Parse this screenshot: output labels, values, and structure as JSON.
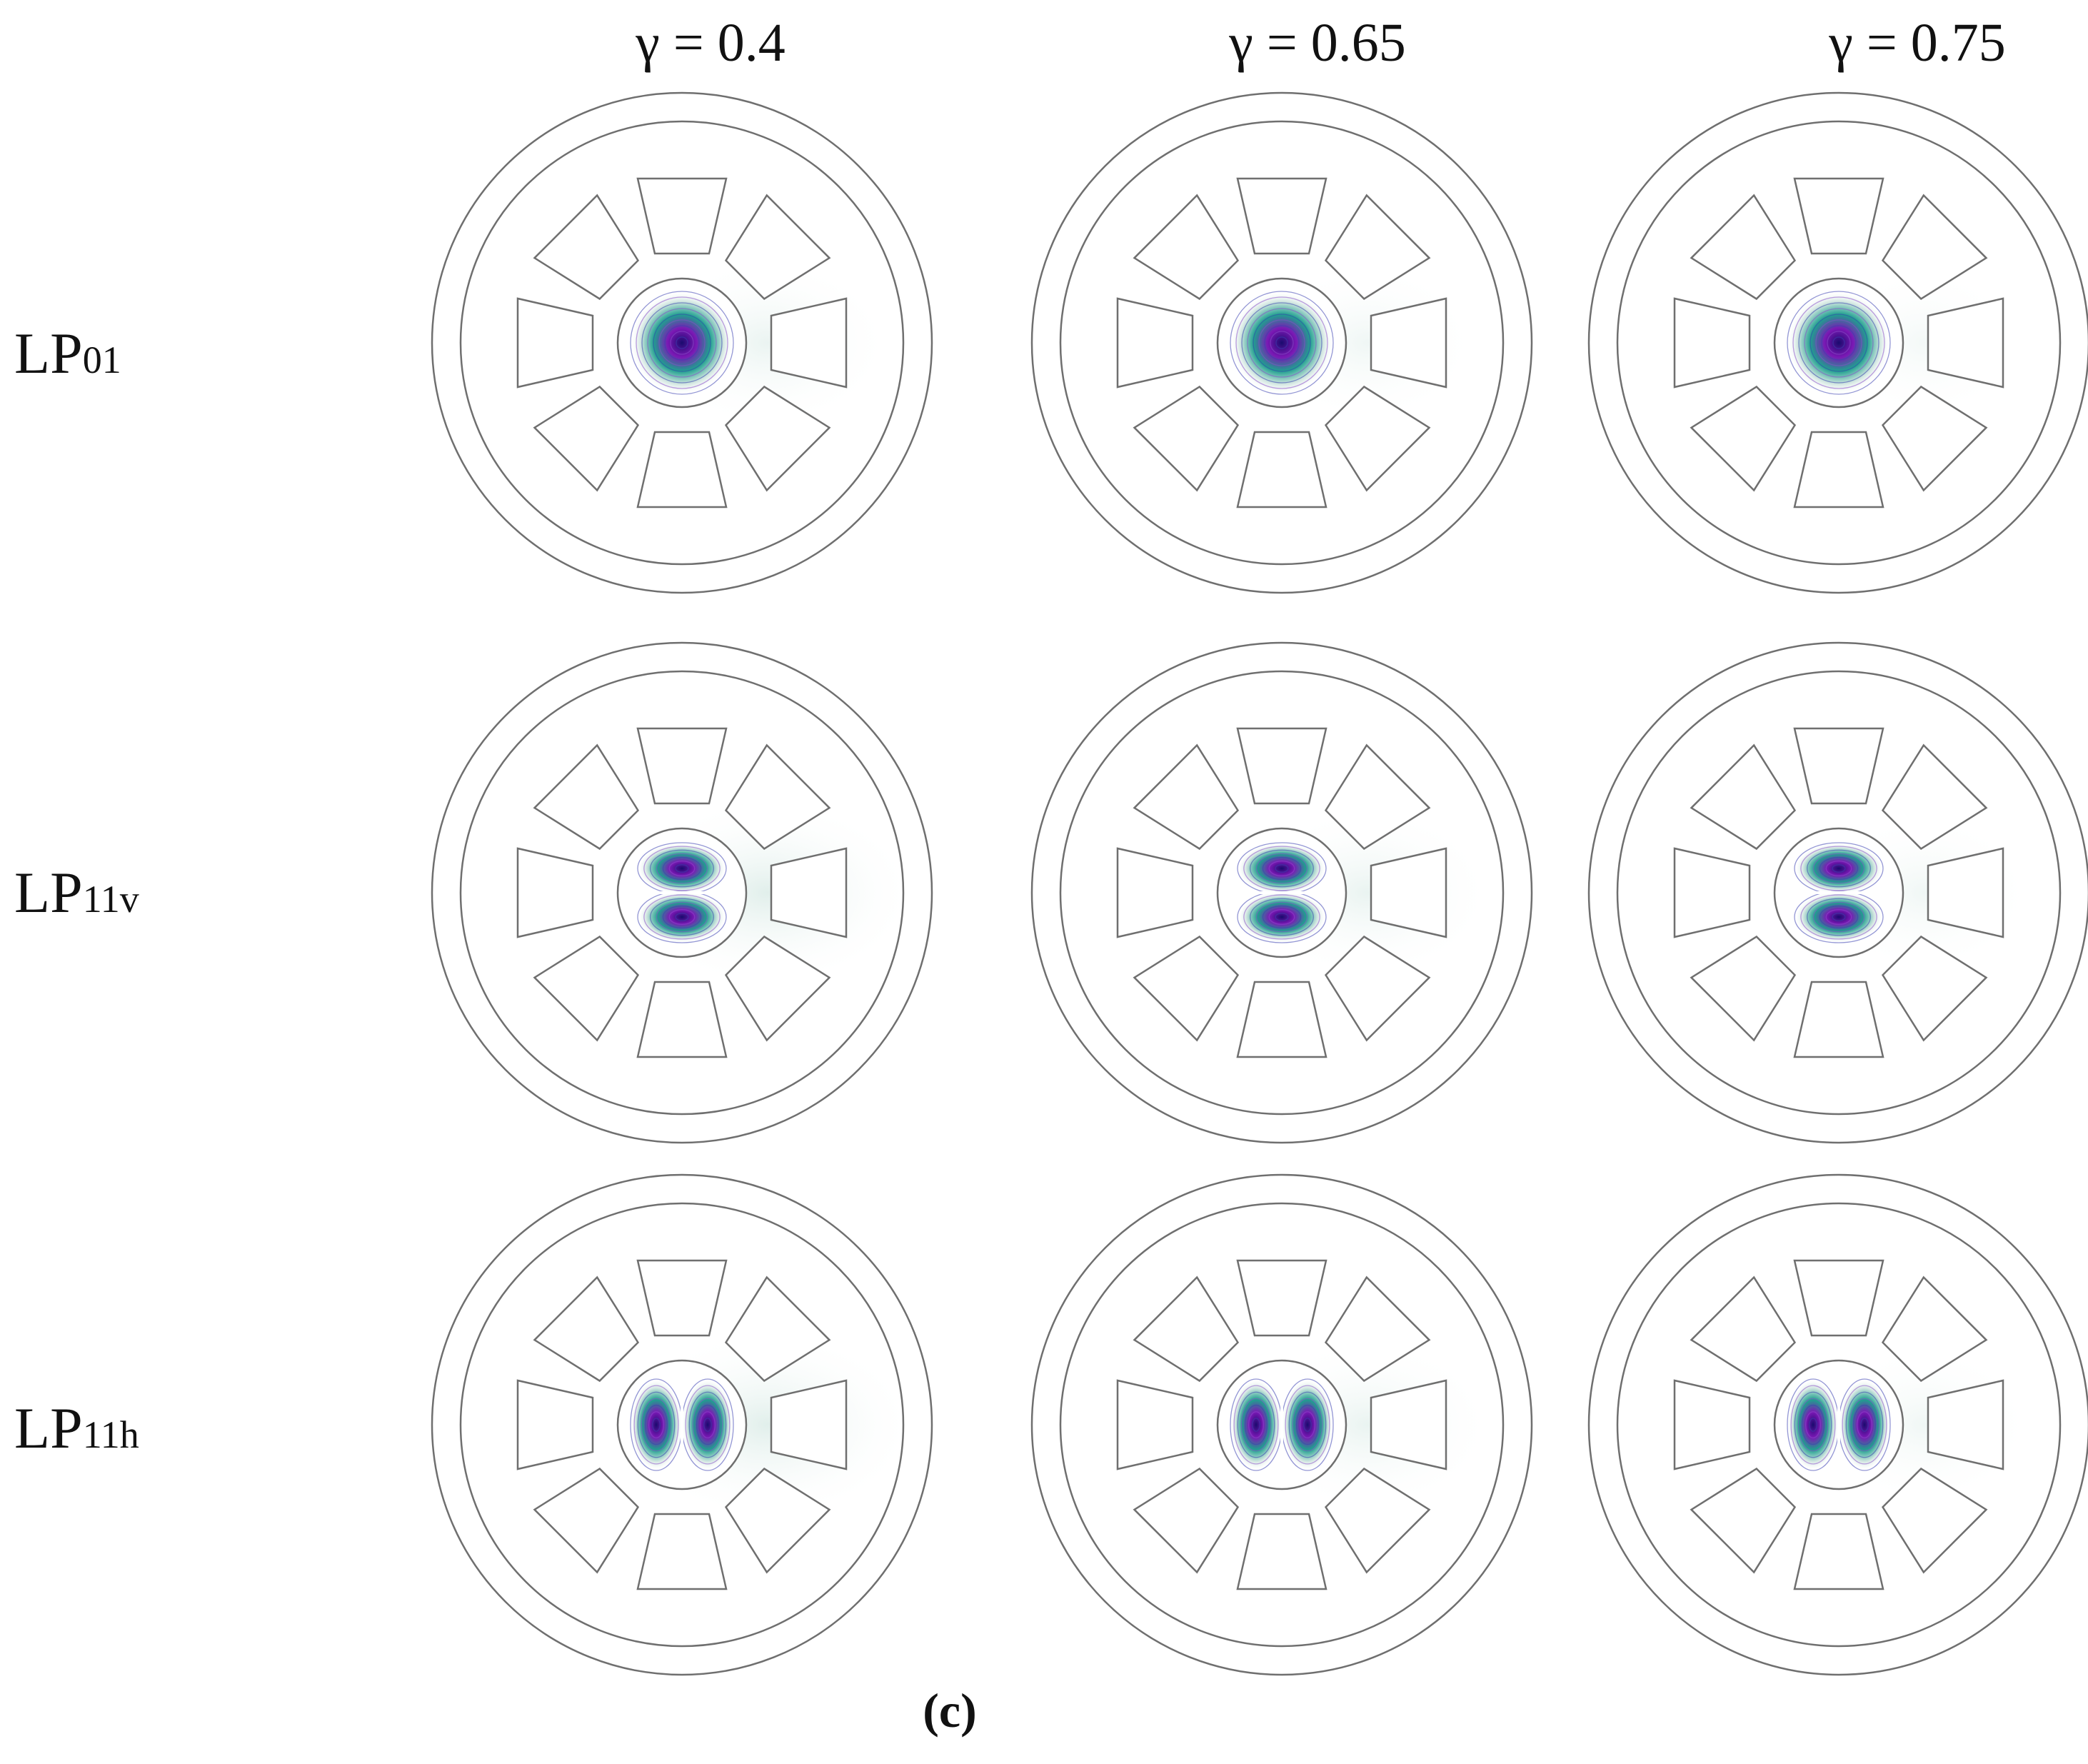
{
  "columns": [
    {
      "label": "γ = 0.4",
      "gamma": 0.4
    },
    {
      "label": "γ = 0.65",
      "gamma": 0.65
    },
    {
      "label": "γ = 0.75",
      "gamma": 0.75
    }
  ],
  "rows": [
    {
      "base": "LP",
      "sub": "01",
      "mode": "LP01"
    },
    {
      "base": "LP",
      "sub": "11v",
      "mode": "LP11v"
    },
    {
      "base": "LP",
      "sub": "11h",
      "mode": "LP11h"
    }
  ],
  "caption": "(c)",
  "colors": {
    "outline": "#6f6f6f",
    "contour_blue": "#3a3fb0",
    "contour_violet": "#8a4fc8",
    "field_core": "#1a0b6e",
    "field_mid": "#7b18b5",
    "field_teal": "#1fa08f",
    "field_halo": "#cfe5df"
  }
}
